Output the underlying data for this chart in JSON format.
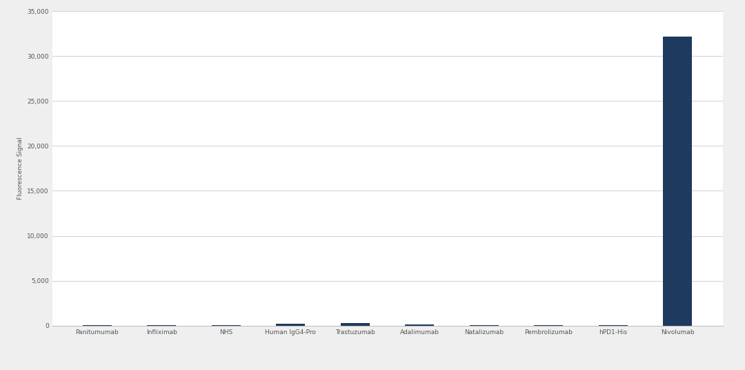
{
  "categories": [
    "Panitumumab",
    "Infliximab",
    "NHS",
    "Human IgG4-Pro",
    "Trastuzumab",
    "Adalimumab",
    "Natalizumab",
    "Pembrolizumab",
    "hPD1-His",
    "Nivolumab"
  ],
  "values": [
    50,
    50,
    60,
    200,
    250,
    150,
    60,
    50,
    60,
    32200
  ],
  "bar_color": "#1e3a5f",
  "background_color": "#efefef",
  "plot_bg_color": "#ffffff",
  "ylabel": "Fluorescence Signal",
  "ylim": [
    0,
    35000
  ],
  "yticks": [
    0,
    5000,
    10000,
    15000,
    20000,
    25000,
    30000,
    35000
  ],
  "grid_color": "#d0d0d0",
  "tick_fontsize": 6.5,
  "bar_width": 0.45,
  "ylabel_fontsize": 6.5
}
